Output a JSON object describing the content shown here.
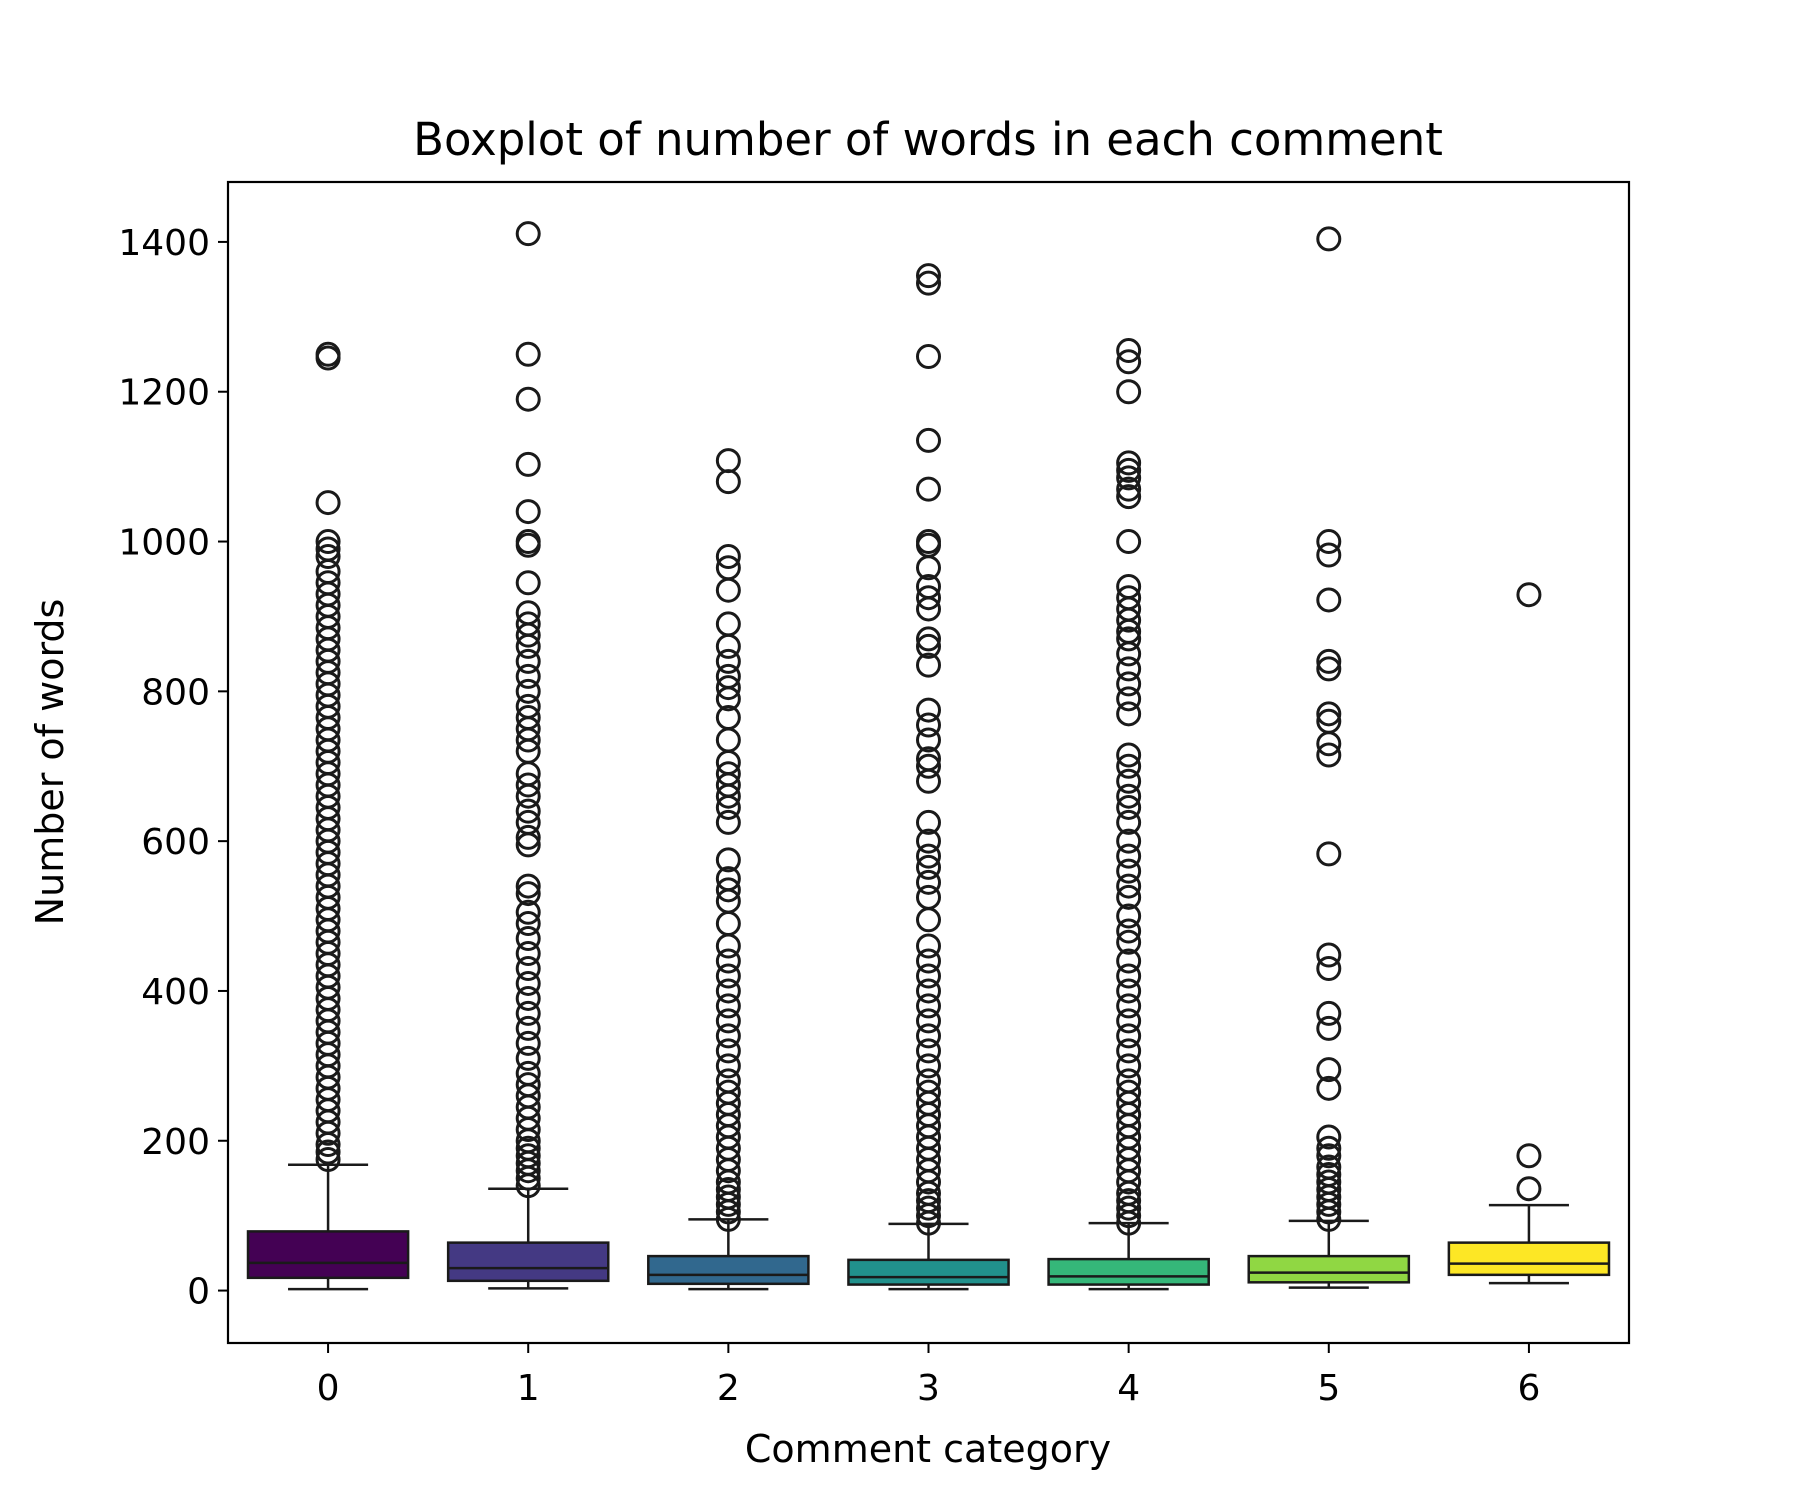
{
  "chart_data": {
    "type": "boxplot",
    "title": "Boxplot of number of words in each comment",
    "xlabel": "Comment category",
    "ylabel": "Number of words",
    "ylim": [
      -70,
      1480
    ],
    "yticks": [
      0,
      200,
      400,
      600,
      800,
      1000,
      1200,
      1400
    ],
    "categories": [
      "0",
      "1",
      "2",
      "3",
      "4",
      "5",
      "6"
    ],
    "grid": false,
    "legend": "none",
    "colors": [
      "#440154",
      "#443983",
      "#31688e",
      "#21918c",
      "#35b779",
      "#90d743",
      "#fde725"
    ],
    "edge_color": "#1a1a1a",
    "boxes": [
      {
        "category": "0",
        "whisker_low": 2,
        "q1": 17,
        "median": 37,
        "q3": 79,
        "whisker_high": 168,
        "outliers": [
          175,
          185,
          195,
          210,
          225,
          240,
          255,
          270,
          285,
          300,
          315,
          330,
          345,
          360,
          375,
          390,
          405,
          420,
          435,
          450,
          465,
          480,
          495,
          510,
          525,
          540,
          555,
          570,
          585,
          600,
          615,
          630,
          645,
          660,
          675,
          690,
          705,
          720,
          735,
          750,
          765,
          780,
          795,
          810,
          825,
          840,
          855,
          870,
          885,
          900,
          915,
          930,
          945,
          960,
          980,
          990,
          1000,
          1052,
          1245,
          1250
        ]
      },
      {
        "category": "1",
        "whisker_low": 3,
        "q1": 13,
        "median": 30,
        "q3": 64,
        "whisker_high": 136,
        "outliers": [
          140,
          150,
          160,
          170,
          180,
          190,
          200,
          215,
          230,
          245,
          260,
          275,
          290,
          310,
          330,
          350,
          370,
          390,
          410,
          430,
          450,
          470,
          490,
          505,
          530,
          540,
          595,
          605,
          625,
          640,
          660,
          675,
          690,
          720,
          735,
          750,
          765,
          780,
          800,
          820,
          840,
          860,
          875,
          890,
          905,
          945,
          995,
          1000,
          1040,
          1103,
          1190,
          1250,
          1411
        ]
      },
      {
        "category": "2",
        "whisker_low": 2,
        "q1": 9,
        "median": 21,
        "q3": 46,
        "whisker_high": 95,
        "outliers": [
          95,
          105,
          115,
          125,
          135,
          145,
          160,
          175,
          190,
          205,
          220,
          235,
          250,
          265,
          280,
          300,
          320,
          340,
          360,
          380,
          400,
          420,
          440,
          460,
          490,
          520,
          535,
          550,
          575,
          625,
          645,
          660,
          675,
          690,
          705,
          735,
          765,
          790,
          805,
          820,
          840,
          860,
          890,
          935,
          965,
          980,
          1080,
          1108
        ]
      },
      {
        "category": "3",
        "whisker_low": 2,
        "q1": 8,
        "median": 18,
        "q3": 41,
        "whisker_high": 89,
        "outliers": [
          90,
          100,
          110,
          120,
          130,
          145,
          160,
          175,
          190,
          205,
          220,
          235,
          250,
          265,
          280,
          300,
          320,
          340,
          360,
          380,
          400,
          420,
          440,
          460,
          495,
          525,
          545,
          565,
          580,
          600,
          625,
          680,
          700,
          710,
          735,
          755,
          775,
          835,
          860,
          870,
          910,
          925,
          940,
          965,
          995,
          1000,
          1070,
          1135,
          1247,
          1345,
          1355
        ]
      },
      {
        "category": "4",
        "whisker_low": 2,
        "q1": 8,
        "median": 19,
        "q3": 42,
        "whisker_high": 90,
        "outliers": [
          90,
          100,
          110,
          120,
          130,
          145,
          160,
          175,
          190,
          205,
          220,
          235,
          250,
          265,
          280,
          300,
          320,
          340,
          360,
          380,
          400,
          420,
          440,
          465,
          480,
          500,
          525,
          540,
          560,
          580,
          600,
          625,
          645,
          660,
          680,
          700,
          715,
          770,
          790,
          810,
          830,
          850,
          870,
          880,
          895,
          910,
          925,
          940,
          1000,
          1060,
          1070,
          1085,
          1095,
          1105,
          1200,
          1240,
          1255
        ]
      },
      {
        "category": "5",
        "whisker_low": 4,
        "q1": 11,
        "median": 24,
        "q3": 46,
        "whisker_high": 93,
        "outliers": [
          95,
          105,
          115,
          125,
          135,
          145,
          155,
          165,
          180,
          190,
          205,
          270,
          295,
          350,
          370,
          430,
          448,
          583,
          715,
          730,
          760,
          770,
          830,
          840,
          922,
          982,
          1000,
          1404
        ]
      },
      {
        "category": "6",
        "whisker_low": 10,
        "q1": 21,
        "median": 36,
        "q3": 64,
        "whisker_high": 114,
        "outliers": [
          136,
          180,
          929
        ]
      }
    ]
  }
}
